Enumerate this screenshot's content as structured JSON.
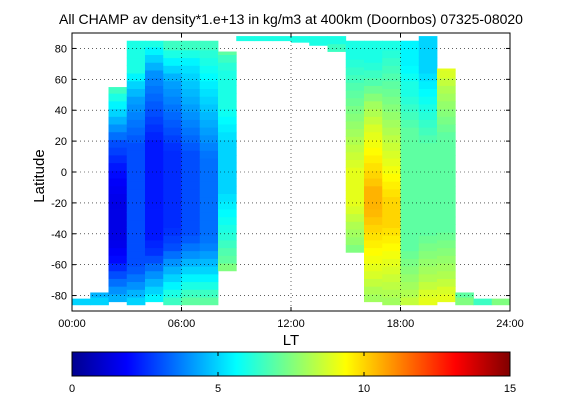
{
  "chart_data": {
    "type": "heatmap",
    "title": "All CHAMP av density*1.e+13 in kg/m3 at 400km (Doornbos) 07325-08020",
    "xlabel": "LT",
    "ylabel": "Latitude",
    "xlim": [
      0,
      24
    ],
    "ylim": [
      -90,
      90
    ],
    "x_ticks": [
      0,
      6,
      12,
      18,
      24
    ],
    "x_tick_labels": [
      "00:00",
      "06:00",
      "12:00",
      "18:00",
      "24:00"
    ],
    "y_ticks": [
      -80,
      -60,
      -40,
      -20,
      0,
      20,
      40,
      60,
      80
    ],
    "y_tick_labels": [
      "-80",
      "-60",
      "-40",
      "-20",
      "0",
      "20",
      "40",
      "60",
      "80"
    ],
    "grid": true,
    "grid_style": "dotted",
    "colormap": "jet",
    "color_range": [
      0,
      15
    ],
    "colorbar_ticks": [
      0,
      5,
      10,
      15
    ],
    "colorbar_tick_labels": [
      "0",
      "5",
      "10",
      "15"
    ],
    "colorbar_position": "bottom",
    "column_width_hours": 1,
    "lat_step": 5,
    "columns": [
      {
        "lt": 0.5,
        "lat_min": -86,
        "lat_max": -82,
        "values": [
          5,
          5
        ]
      },
      {
        "lt": 1.5,
        "lat_min": -86,
        "lat_max": -78,
        "values": [
          5,
          4.5
        ]
      },
      {
        "lt": 2.5,
        "lat_min": -84,
        "lat_max": 55,
        "values": [
          4.5,
          4,
          3.5,
          3,
          2.5,
          2,
          1.8,
          1.6,
          1.5,
          1.5,
          1.5,
          1.5,
          1.5,
          1.6,
          1.7,
          1.8,
          2,
          2.2,
          2.5,
          2.8,
          3,
          3.5,
          4,
          4.5,
          5,
          5.5,
          6,
          6.5
        ]
      },
      {
        "lt": 3.5,
        "lat_min": -86,
        "lat_max": 85,
        "values": [
          5,
          4.5,
          4,
          3.6,
          3.2,
          3,
          3,
          3,
          3,
          3,
          3,
          3,
          3,
          3,
          3,
          3,
          3,
          3,
          3,
          3,
          3,
          3.2,
          3.4,
          3.6,
          3.8,
          4,
          4.2,
          4.6,
          5,
          5.5,
          6,
          6,
          6,
          6
        ]
      },
      {
        "lt": 4.5,
        "lat_min": -84,
        "lat_max": 85,
        "values": [
          5.5,
          5,
          4.5,
          4,
          3.5,
          3,
          2.6,
          2.4,
          2.2,
          2.2,
          2.2,
          2.2,
          2.2,
          2.2,
          2.2,
          2.2,
          2.2,
          2.2,
          2.2,
          2.2,
          2.2,
          2.4,
          2.6,
          2.8,
          3,
          3.2,
          3.4,
          3.6,
          3.8,
          4,
          4.5,
          5,
          5.5,
          6
        ]
      },
      {
        "lt": 5.5,
        "lat_min": -86,
        "lat_max": 85,
        "values": [
          6.5,
          6,
          5.5,
          5,
          4.5,
          4,
          3.5,
          3,
          2.8,
          2.6,
          2.5,
          2.5,
          2.5,
          2.5,
          2.5,
          2.5,
          2.5,
          2.5,
          2.5,
          2.5,
          2.6,
          2.8,
          3,
          3.2,
          3.4,
          3.6,
          3.8,
          4,
          4.2,
          4.5,
          5,
          5.5,
          6,
          6.5
        ]
      },
      {
        "lt": 6.5,
        "lat_min": -86,
        "lat_max": 85,
        "values": [
          7,
          6.5,
          6,
          5.5,
          5,
          4.5,
          4,
          3.6,
          3.2,
          3,
          3,
          3,
          3,
          3,
          3,
          3,
          3,
          3,
          3,
          3,
          3.2,
          3.4,
          3.6,
          3.8,
          4,
          4.2,
          4.4,
          4.6,
          4.8,
          5,
          5.2,
          5.5,
          6,
          6.5
        ]
      },
      {
        "lt": 7.5,
        "lat_min": -86,
        "lat_max": 85,
        "values": [
          7,
          6.5,
          6,
          5.5,
          5,
          4.6,
          4.2,
          3.8,
          3.6,
          3.5,
          3.5,
          3.5,
          3.5,
          3.5,
          3.5,
          3.5,
          3.5,
          3.5,
          3.5,
          3.6,
          3.8,
          4,
          4.2,
          4.4,
          4.6,
          4.8,
          5,
          5.2,
          5.4,
          5.6,
          5.8,
          6,
          6.2,
          6.5
        ]
      },
      {
        "lt": 8.5,
        "lat_min": -64,
        "lat_max": 78,
        "values": [
          7.5,
          7,
          6.8,
          6.5,
          6.2,
          6,
          5.8,
          5.6,
          5.4,
          5.2,
          5,
          5,
          5,
          5,
          5,
          5,
          5,
          5.2,
          5.4,
          5.6,
          5.8,
          6,
          6,
          6,
          6,
          6,
          6.2,
          6.5,
          7
        ]
      },
      {
        "lt": 9.5,
        "lat_min": 85,
        "lat_max": 88,
        "values": [
          6
        ]
      },
      {
        "lt": 10.5,
        "lat_min": 85,
        "lat_max": 88,
        "values": [
          6
        ]
      },
      {
        "lt": 11.5,
        "lat_min": 85,
        "lat_max": 88,
        "values": [
          6
        ]
      },
      {
        "lt": 12.5,
        "lat_min": 84,
        "lat_max": 88,
        "values": [
          6
        ]
      },
      {
        "lt": 13.5,
        "lat_min": 82,
        "lat_max": 88,
        "values": [
          6
        ]
      },
      {
        "lt": 14.5,
        "lat_min": 78,
        "lat_max": 88,
        "values": [
          6.5,
          6
        ]
      },
      {
        "lt": 15.5,
        "lat_min": -52,
        "lat_max": 85,
        "values": [
          7.5,
          7.8,
          8,
          8.2,
          8.5,
          8.8,
          9,
          9,
          9,
          9,
          9,
          8.8,
          8.6,
          8.4,
          8.2,
          8,
          7.8,
          7.6,
          7.4,
          7.2,
          7,
          6.8,
          6.6,
          6.4,
          6.2,
          6,
          6,
          6
        ]
      },
      {
        "lt": 16.5,
        "lat_min": -84,
        "lat_max": 85,
        "values": [
          8,
          8.2,
          8.5,
          8.8,
          9,
          9.2,
          9.4,
          9.6,
          9.8,
          10,
          10.2,
          10.4,
          10.5,
          10.5,
          10.5,
          10.2,
          10,
          9.8,
          9.6,
          9.4,
          9.2,
          9,
          8.8,
          8.5,
          8.2,
          8,
          7.6,
          7.2,
          6.8,
          6.5,
          6.2,
          6,
          6,
          6
        ]
      },
      {
        "lt": 17.5,
        "lat_min": -86,
        "lat_max": 85,
        "values": [
          8,
          8.2,
          8.4,
          8.6,
          8.8,
          9,
          9.2,
          9.4,
          9.6,
          9.8,
          10,
          10,
          10,
          10,
          9.8,
          9.6,
          9.4,
          9.2,
          9,
          8.8,
          8.6,
          8.4,
          8.2,
          8,
          7.8,
          7.6,
          7.4,
          7.2,
          7,
          6.8,
          6.6,
          6.4,
          6.2,
          6
        ]
      },
      {
        "lt": 18.5,
        "lat_min": -86,
        "lat_max": 85,
        "values": [
          8.5,
          8.2,
          8,
          7.8,
          7.6,
          7.4,
          7.2,
          7,
          7,
          7,
          7,
          7,
          7,
          7,
          7,
          7,
          7,
          7,
          7,
          7,
          7,
          7,
          7,
          6.8,
          6.6,
          6.4,
          6.2,
          6,
          6,
          5.8,
          5.6,
          5.5,
          5.5,
          5.5
        ]
      },
      {
        "lt": 19.5,
        "lat_min": -86,
        "lat_max": 88,
        "values": [
          9,
          8.8,
          8.5,
          8.2,
          8,
          7.8,
          7.6,
          7.4,
          7.2,
          7,
          7,
          7,
          7,
          7,
          7,
          7,
          7,
          7,
          7,
          7,
          7,
          6.8,
          6.6,
          6.4,
          6.2,
          6,
          5.8,
          5.6,
          5.4,
          5.2,
          5,
          5,
          5,
          5
        ]
      },
      {
        "lt": 20.5,
        "lat_min": -84,
        "lat_max": 67,
        "values": [
          9,
          8.8,
          8.5,
          8.2,
          8,
          7.8,
          7.6,
          7.4,
          7.2,
          7,
          7,
          7,
          7,
          7,
          7,
          7,
          7,
          7,
          7,
          7,
          7,
          7,
          7.2,
          7.4,
          7.6,
          7.8,
          8,
          8.2,
          8.5,
          8.8,
          9
        ]
      },
      {
        "lt": 21.5,
        "lat_min": -86,
        "lat_max": -78,
        "values": [
          7.5,
          7
        ]
      },
      {
        "lt": 22.5,
        "lat_min": -86,
        "lat_max": -82,
        "values": [
          6.5,
          6.5
        ]
      },
      {
        "lt": 23.5,
        "lat_min": -86,
        "lat_max": -82,
        "values": [
          7.5,
          7
        ]
      }
    ]
  }
}
